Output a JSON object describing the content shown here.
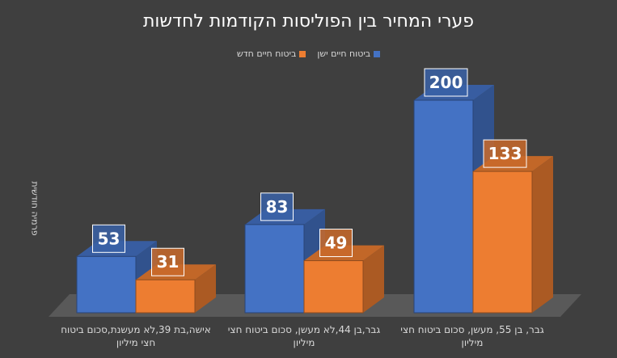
{
  "chart_data": {
    "type": "bar",
    "title": "פערי המחיר בין הפוליסות הקודמות לחדשות",
    "ylabel": "פרמיה חודשית",
    "categories": [
      "אישה,בת 39,לא מעשנת,סכום ביטוח חצי מיליון",
      "גבר,בן 44,לא מעשן, סכום ביטוח חצי מיליון",
      "גבר, בן 55, מעשן, סכום ביטוח חצי מיליון"
    ],
    "series": [
      {
        "name": "ביטוח חיים ישן",
        "values": [
          53,
          83,
          200
        ],
        "color": "#4472c4"
      },
      {
        "name": "ביטוח חיים חדש",
        "values": [
          31,
          49,
          133
        ],
        "color": "#ed7d31"
      }
    ],
    "ylim": [
      0,
      200
    ],
    "legend": "top-center",
    "grid": false,
    "style": "3d-column"
  }
}
